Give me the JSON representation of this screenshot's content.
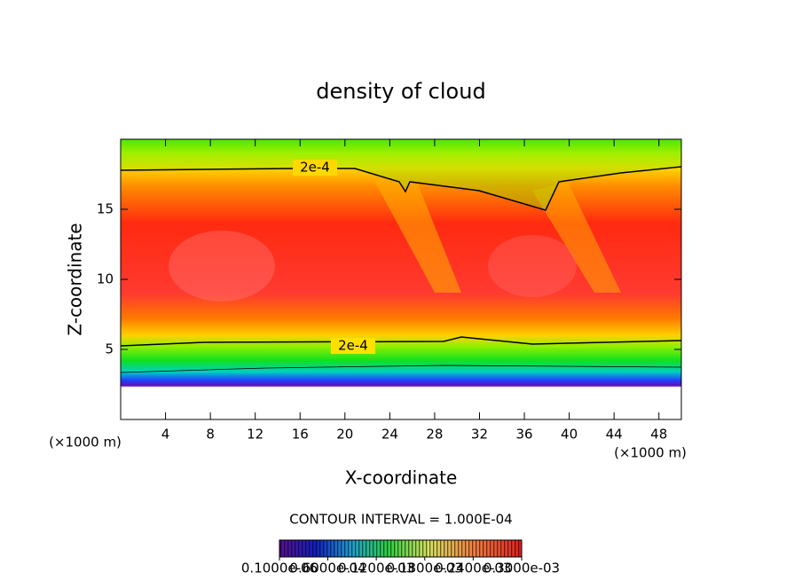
{
  "chart_data": {
    "type": "heatmap",
    "title": "density of cloud",
    "x_label": "X-coordinate",
    "y_label": "Z-coordinate",
    "x_unit": "(×1000 m)",
    "y_unit": "(×1000 m)",
    "xlim": [
      0,
      50
    ],
    "xticks": [
      4,
      8,
      12,
      16,
      20,
      24,
      28,
      32,
      36,
      40,
      44,
      48
    ],
    "ylim": [
      0,
      20
    ],
    "yticks": [
      5,
      10,
      15
    ],
    "contour_interval": "CONTOUR INTERVAL = 1.000E-04",
    "contour_label": "2e-4",
    "clim": [
      1e-07,
      0.0003
    ],
    "cticks": [
      {
        "value": 1e-07,
        "label": "0.1000e-06"
      },
      {
        "value": 6e-05,
        "label": "0.6000e-04"
      },
      {
        "value": 0.00012,
        "label": "0.1200e-03"
      },
      {
        "value": 0.00018,
        "label": "0.1800e-03"
      },
      {
        "value": 0.00024,
        "label": "0.2400e-03"
      },
      {
        "value": 0.0003,
        "label": "0.3000e-03"
      }
    ]
  }
}
